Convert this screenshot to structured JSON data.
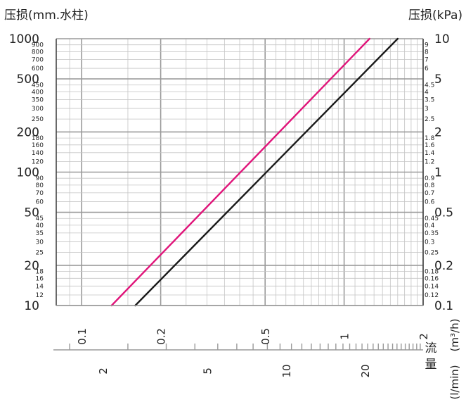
{
  "chart_data": {
    "type": "line",
    "title": "",
    "y_left_label": "压损(mm.水柱)",
    "y_right_label": "压损(kPa)",
    "x_label_cn": "流量",
    "x_unit_top": "(m³/h)",
    "x_unit_bottom": "(l/min)",
    "x_scale": "log",
    "y_scale": "log",
    "xlim_m3h": [
      0.08,
      2.0
    ],
    "ylim_mm": [
      10,
      1000
    ],
    "grid": true,
    "y_left_major_ticks": [
      "1000",
      "500",
      "200",
      "100",
      "50",
      "20",
      "10"
    ],
    "y_left_minor_ticks": [
      "900",
      "800",
      "700",
      "600",
      "450",
      "400",
      "350",
      "300",
      "250",
      "180",
      "160",
      "140",
      "120",
      "90",
      "80",
      "70",
      "60",
      "45",
      "40",
      "35",
      "30",
      "25",
      "18",
      "16",
      "14",
      "12"
    ],
    "y_right_major_ticks": [
      "10",
      "5",
      "2",
      "1",
      "0.5",
      "0.2",
      "0.1"
    ],
    "y_right_minor_ticks": [
      "9",
      "8",
      "7",
      "6",
      "4.5",
      "4",
      "3.5",
      "3",
      "2.5",
      "1.8",
      "1.6",
      "1.4",
      "1.2",
      "0.9",
      "0.8",
      "0.7",
      "0.6",
      "0.45",
      "0.4",
      "0.35",
      "0.3",
      "0.25",
      "0.18",
      "0.16",
      "0.14",
      "0.12"
    ],
    "x_top_ticks": [
      "0.1",
      "0.2",
      "0.5",
      "1",
      "2"
    ],
    "x_bottom_ticks": [
      "2",
      "5",
      "10",
      "20"
    ],
    "series": [
      {
        "color": "#e0157a",
        "points": [
          [
            0.13,
            10
          ],
          [
            1.25,
            1000
          ]
        ]
      },
      {
        "color": "#1a1a1a",
        "points": [
          [
            0.16,
            10
          ],
          [
            1.6,
            1000
          ]
        ]
      }
    ]
  }
}
